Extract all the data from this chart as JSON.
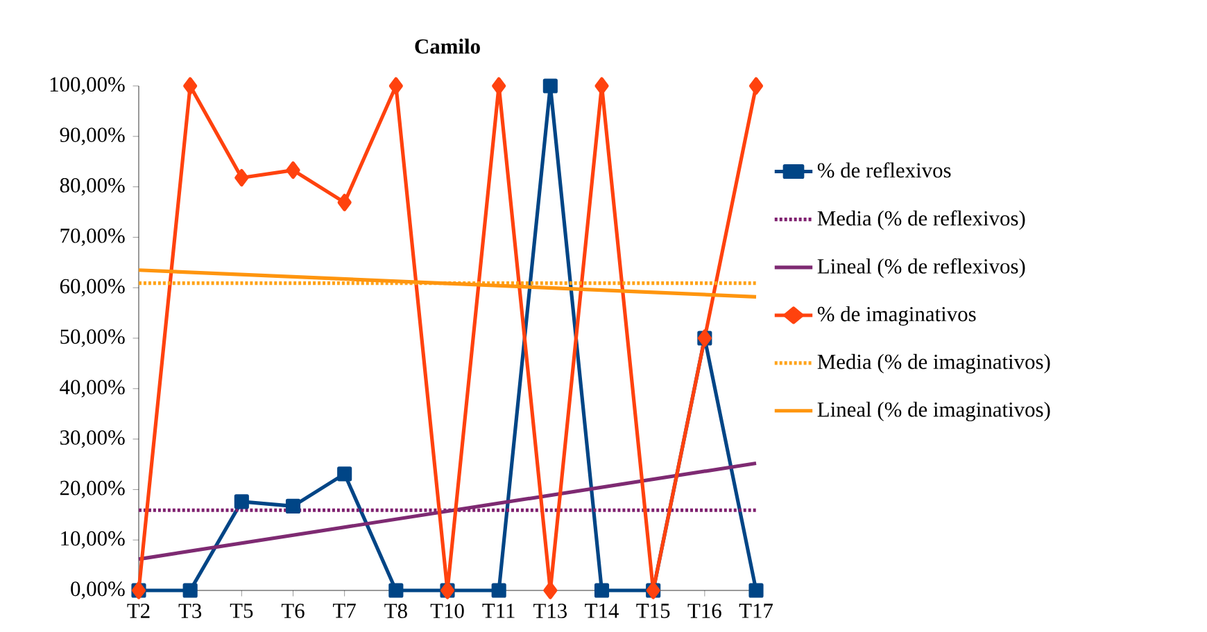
{
  "chart_data": {
    "type": "line",
    "title": "Camilo",
    "categories": [
      "T2",
      "T3",
      "T5",
      "T6",
      "T7",
      "T8",
      "T10",
      "T11",
      "T13",
      "T14",
      "T15",
      "T16",
      "T17"
    ],
    "series": [
      {
        "name": "% de reflexivos",
        "color": "#004586",
        "marker": "square",
        "values": [
          0,
          0,
          17.6,
          16.7,
          23.1,
          0,
          0,
          0,
          100,
          0,
          0,
          50,
          0
        ]
      },
      {
        "name": "Media (% de reflexivos)",
        "color": "#7e1f6e",
        "line_style": "dotted",
        "marker": "none",
        "values": [
          15.9,
          15.9,
          15.9,
          15.9,
          15.9,
          15.9,
          15.9,
          15.9,
          15.9,
          15.9,
          15.9,
          15.9,
          15.9
        ]
      },
      {
        "name": "Lineal (% de reflexivos)",
        "color": "#7e2a72",
        "marker": "none",
        "x": [
          "T2",
          "T17"
        ],
        "values": [
          6.2,
          25.2
        ]
      },
      {
        "name": "% de imaginativos",
        "color": "#ff420e",
        "marker": "diamond",
        "values": [
          0,
          100,
          81.8,
          83.3,
          76.9,
          100,
          0,
          100,
          0,
          100,
          0,
          50,
          100
        ]
      },
      {
        "name": "Media (% de imaginativos)",
        "color": "#ffa319",
        "line_style": "dotted",
        "marker": "none",
        "values": [
          60.9,
          60.9,
          60.9,
          60.9,
          60.9,
          60.9,
          60.9,
          60.9,
          60.9,
          60.9,
          60.9,
          60.9,
          60.9
        ]
      },
      {
        "name": "Lineal (% de imaginativos)",
        "color": "#ff950e",
        "marker": "none",
        "x": [
          "T2",
          "T17"
        ],
        "values": [
          63.5,
          58.2
        ]
      }
    ],
    "ylim": [
      0,
      100
    ],
    "yticks": [
      {
        "value": 0,
        "label": "0,00%"
      },
      {
        "value": 10,
        "label": "10,00%"
      },
      {
        "value": 20,
        "label": "20,00%"
      },
      {
        "value": 30,
        "label": "30,00%"
      },
      {
        "value": 40,
        "label": "40,00%"
      },
      {
        "value": 50,
        "label": "50,00%"
      },
      {
        "value": 60,
        "label": "60,00%"
      },
      {
        "value": 70,
        "label": "70,00%"
      },
      {
        "value": 80,
        "label": "80,00%"
      },
      {
        "value": 90,
        "label": "90,00%"
      },
      {
        "value": 100,
        "label": "100,00%"
      }
    ],
    "grid": false,
    "legend": "right"
  }
}
